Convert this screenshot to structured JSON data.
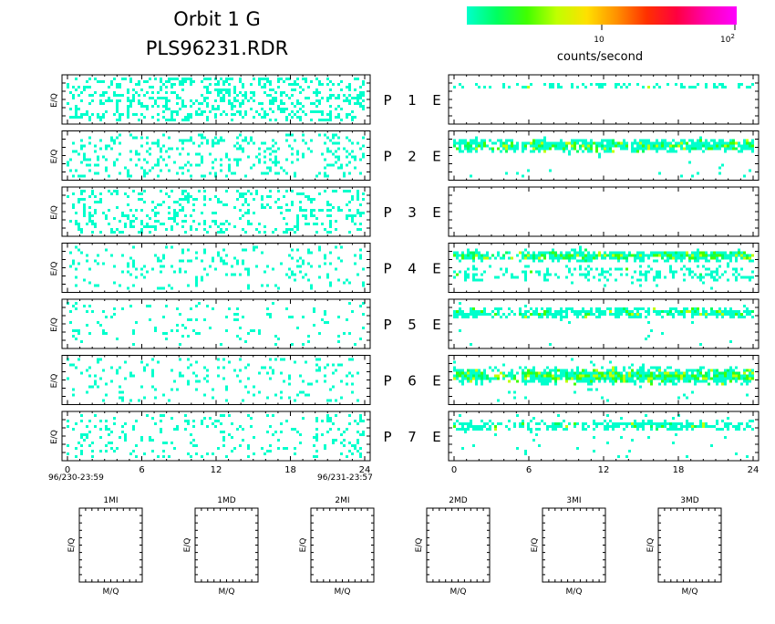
{
  "title": {
    "line1": "Orbit 1 G",
    "line2": "PLS96231.RDR"
  },
  "colorbar": {
    "label": "counts/second",
    "tick1": "10",
    "tick2_base": "10",
    "tick2_exp": "2",
    "colors": [
      "#00ffcc",
      "#00ff60",
      "#40ff00",
      "#c0ff00",
      "#ffe000",
      "#ff9000",
      "#ff3000",
      "#ff0040",
      "#ff00b0",
      "#ff00ff"
    ]
  },
  "axes": {
    "ylabel": "E/Q",
    "xlabel": "M/Q",
    "xticks": [
      "0",
      "6",
      "12",
      "18",
      "24"
    ],
    "start_time": "96/230-23:59",
    "end_time": "96/231-23:57"
  },
  "rows": [
    {
      "P": "P",
      "num": "1",
      "E": "E"
    },
    {
      "P": "P",
      "num": "2",
      "E": "E"
    },
    {
      "P": "P",
      "num": "3",
      "E": "E"
    },
    {
      "P": "P",
      "num": "4",
      "E": "E"
    },
    {
      "P": "P",
      "num": "5",
      "E": "E"
    },
    {
      "P": "P",
      "num": "6",
      "E": "E"
    },
    {
      "P": "P",
      "num": "7",
      "E": "E"
    }
  ],
  "mass_panels": [
    "1MI",
    "1MD",
    "2MI",
    "2MD",
    "3MI",
    "3MD"
  ],
  "chart_data": {
    "type": "heatmap",
    "x_range": [
      0,
      24
    ],
    "x_unit": "hours",
    "color_scale": "log",
    "color_range": [
      1,
      100
    ],
    "panels": [
      {
        "side": "left",
        "row": 1,
        "density": 0.3,
        "bands": []
      },
      {
        "side": "left",
        "row": 2,
        "density": 0.17,
        "bands": []
      },
      {
        "side": "left",
        "row": 3,
        "density": 0.2,
        "bands": []
      },
      {
        "side": "left",
        "row": 4,
        "density": 0.1,
        "bands": []
      },
      {
        "side": "left",
        "row": 5,
        "density": 0.07,
        "bands": []
      },
      {
        "side": "left",
        "row": 6,
        "density": 0.1,
        "bands": []
      },
      {
        "side": "left",
        "row": 7,
        "density": 0.13,
        "bands": []
      },
      {
        "side": "right",
        "row": 1,
        "density": 0.0,
        "bands": [
          {
            "center": 0.78,
            "width": 0.08,
            "fill": 0.45,
            "intensity": 0.05
          }
        ]
      },
      {
        "side": "right",
        "row": 2,
        "density": 0.02,
        "bands": [
          {
            "center": 0.7,
            "width": 0.18,
            "fill": 0.92,
            "intensity": 0.35
          }
        ]
      },
      {
        "side": "right",
        "row": 3,
        "density": 0.0,
        "bands": []
      },
      {
        "side": "right",
        "row": 4,
        "density": 0.02,
        "bands": [
          {
            "center": 0.74,
            "width": 0.14,
            "fill": 0.97,
            "intensity": 0.42
          },
          {
            "center": 0.32,
            "width": 0.22,
            "fill": 0.35,
            "intensity": 0.03
          }
        ]
      },
      {
        "side": "right",
        "row": 5,
        "density": 0.01,
        "bands": [
          {
            "center": 0.72,
            "width": 0.14,
            "fill": 0.85,
            "intensity": 0.2
          }
        ]
      },
      {
        "side": "right",
        "row": 6,
        "density": 0.02,
        "bands": [
          {
            "center": 0.56,
            "width": 0.22,
            "fill": 0.97,
            "intensity": 0.5
          }
        ]
      },
      {
        "side": "right",
        "row": 7,
        "density": 0.03,
        "bands": [
          {
            "center": 0.7,
            "width": 0.14,
            "fill": 0.65,
            "intensity": 0.08
          }
        ]
      }
    ],
    "mass_panels_empty": true
  }
}
